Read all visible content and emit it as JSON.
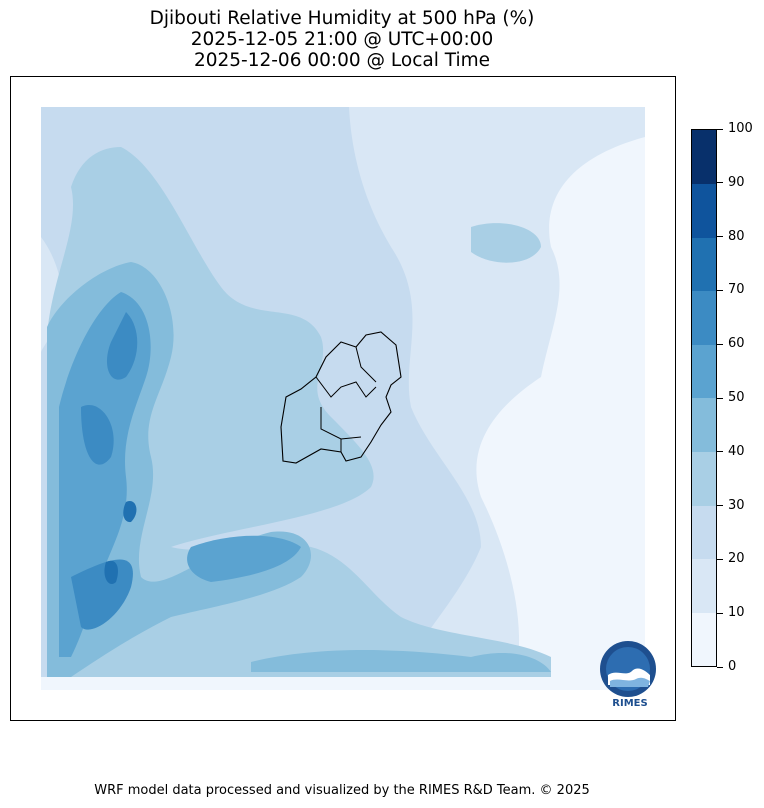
{
  "title": {
    "line1": "Djibouti Relative Humidity at 500 hPa (%)",
    "line2": "2025-12-05 21:00 @ UTC+00:00",
    "line3": "2025-12-06 00:00 @ Local Time"
  },
  "colorbar": {
    "ticks": [
      "0",
      "10",
      "20",
      "30",
      "40",
      "50",
      "60",
      "70",
      "80",
      "90",
      "100"
    ],
    "colors": [
      "#f0f6fd",
      "#d9e7f5",
      "#c6dbef",
      "#a9cfe5",
      "#84bcdb",
      "#5ba3d0",
      "#3c8bc3",
      "#2071b1",
      "#0f549d",
      "#08306b"
    ]
  },
  "logo": {
    "text": "RIMES",
    "icon": "rimes-logo-icon"
  },
  "footer": "WRF model data processed and visualized by the RIMES R&D Team. © 2025"
}
